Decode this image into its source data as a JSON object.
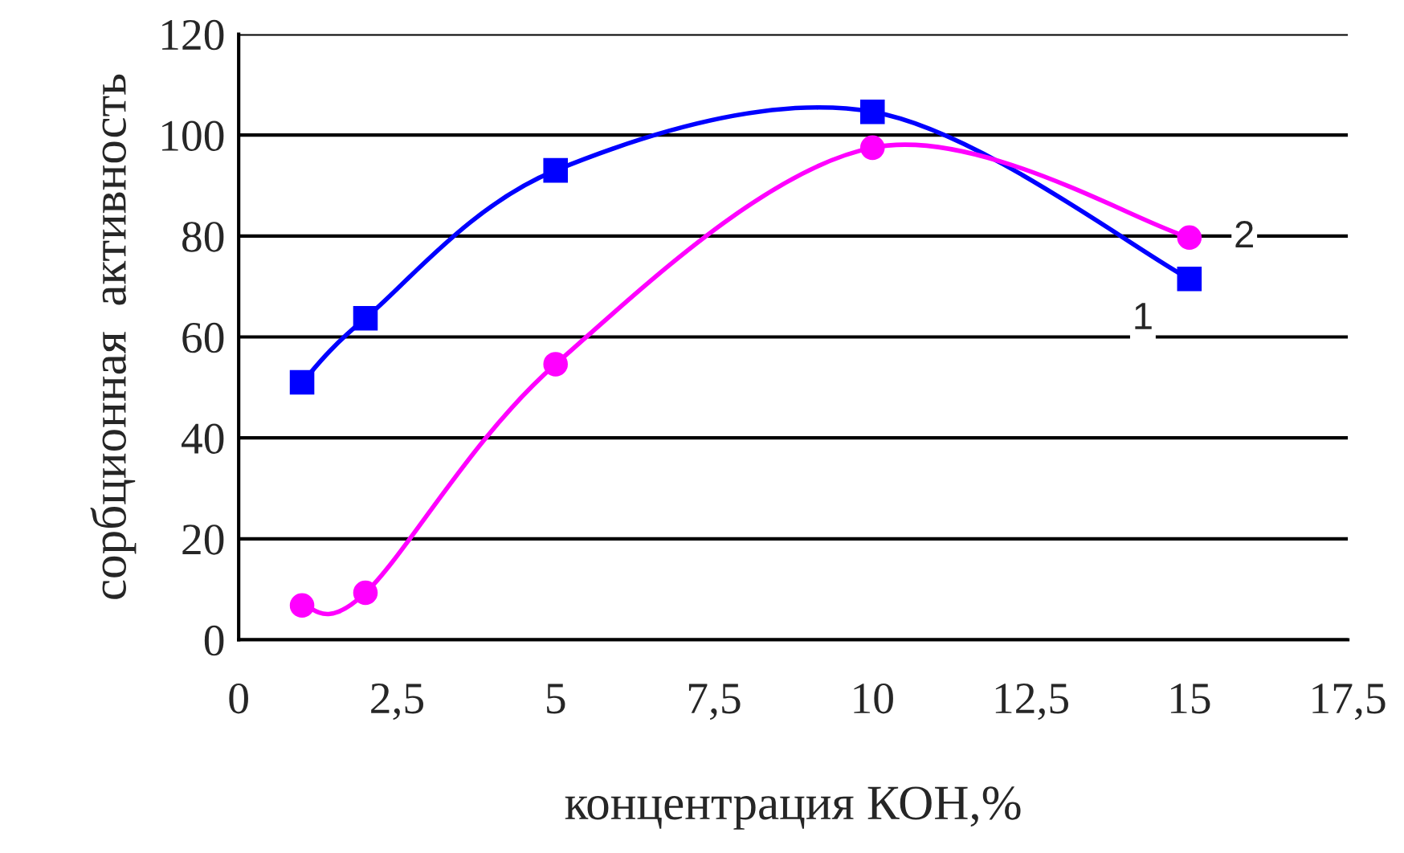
{
  "chart_data": {
    "type": "line",
    "xlabel": "концентрация КОН,%",
    "ylabel": "сорбционная  активность",
    "xlim": [
      0,
      17.5
    ],
    "xticks": [
      0,
      {
        "value": 2.5,
        "label": "2,5"
      },
      5,
      {
        "value": 7.5,
        "label": "7,5"
      },
      10,
      {
        "value": 12.5,
        "label": "12,5"
      },
      15,
      {
        "value": 17.5,
        "label": "17,5"
      }
    ],
    "ylim": [
      0,
      120
    ],
    "yticks": [
      0,
      20,
      40,
      60,
      80,
      100,
      120
    ],
    "grid": "y",
    "legend": false,
    "series": [
      {
        "name": "1",
        "color": "#0000ff",
        "marker": "square",
        "x": [
          1,
          2,
          5,
          10,
          15
        ],
        "values": [
          51,
          63.7,
          93,
          104.6,
          71.5
        ]
      },
      {
        "name": "2",
        "color": "#ff00ff",
        "marker": "circle",
        "x": [
          1,
          2,
          5,
          10,
          15
        ],
        "values": [
          6.8,
          9.3,
          54.6,
          97.5,
          79.7
        ]
      }
    ]
  }
}
